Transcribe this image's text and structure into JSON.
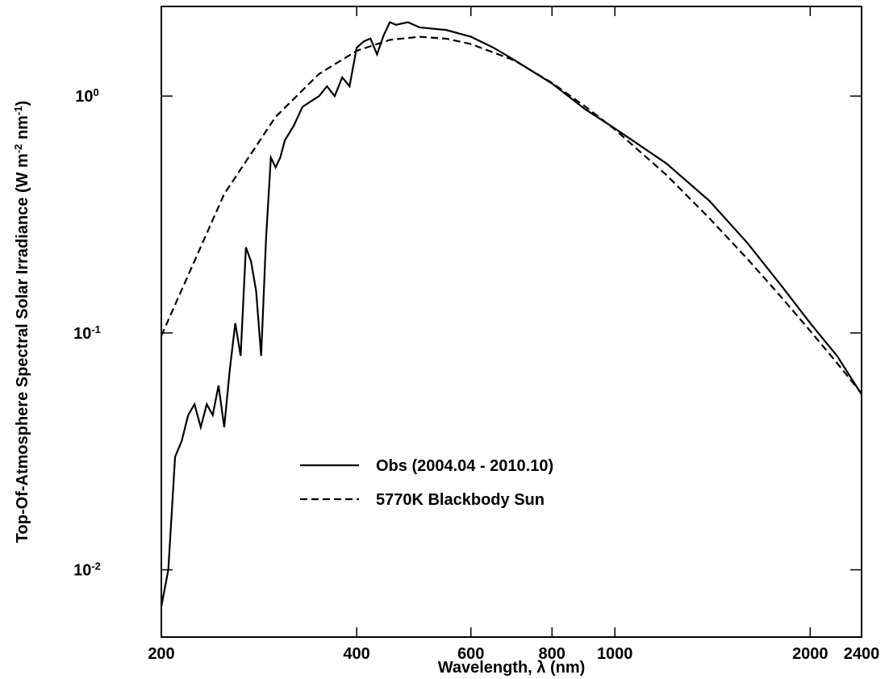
{
  "chart_data": {
    "type": "line",
    "xlabel": "Wavelength, λ (nm)",
    "ylabel": "Top-Of-Atmosphere Spectral Solar Irradiance (W m^-2 nm^-1)",
    "xscale": "log",
    "yscale": "log",
    "xlim": [
      200,
      2400
    ],
    "ylim": [
      0.0052,
      2.39
    ],
    "xticks": [
      200,
      400,
      600,
      800,
      1000,
      2000,
      2400
    ],
    "yticks": [
      {
        "value": 0.01,
        "label": "10^-2"
      },
      {
        "value": 0.1,
        "label": "10^-1"
      },
      {
        "value": 1,
        "label": "10^0"
      }
    ],
    "legend": "center-left",
    "series": [
      {
        "name": "Obs (2004.04 - 2010.10)",
        "color": "#000000",
        "dash": "solid",
        "x": [
          200,
          205,
          210,
          215,
          220,
          225,
          230,
          235,
          240,
          245,
          250,
          255,
          260,
          265,
          270,
          275,
          280,
          285,
          290,
          295,
          300,
          305,
          310,
          320,
          330,
          340,
          350,
          360,
          370,
          380,
          390,
          400,
          410,
          420,
          430,
          440,
          450,
          460,
          480,
          500,
          550,
          600,
          650,
          700,
          800,
          900,
          1000,
          1200,
          1400,
          1600,
          1800,
          2000,
          2200,
          2400
        ],
        "values": [
          0.007,
          0.01,
          0.03,
          0.035,
          0.045,
          0.05,
          0.04,
          0.05,
          0.045,
          0.06,
          0.04,
          0.07,
          0.11,
          0.08,
          0.23,
          0.2,
          0.15,
          0.08,
          0.25,
          0.55,
          0.5,
          0.55,
          0.65,
          0.75,
          0.9,
          0.95,
          1.0,
          1.1,
          1.0,
          1.2,
          1.1,
          1.6,
          1.7,
          1.75,
          1.5,
          1.8,
          2.05,
          2.0,
          2.05,
          1.95,
          1.9,
          1.78,
          1.6,
          1.42,
          1.13,
          0.88,
          0.73,
          0.52,
          0.36,
          0.24,
          0.16,
          0.11,
          0.08,
          0.055
        ]
      },
      {
        "name": "5770K Blackbody Sun",
        "color": "#000000",
        "dash": "dashed",
        "x": [
          200,
          250,
          300,
          350,
          400,
          450,
          500,
          550,
          600,
          700,
          800,
          900,
          1000,
          1200,
          1400,
          1600,
          1800,
          2000,
          2200,
          2400
        ],
        "values": [
          0.0973,
          0.386,
          0.817,
          1.24,
          1.553,
          1.727,
          1.78,
          1.747,
          1.658,
          1.414,
          1.137,
          0.904,
          0.723,
          0.465,
          0.304,
          0.2056,
          0.1429,
          0.102,
          0.0746,
          0.0556
        ]
      }
    ]
  }
}
